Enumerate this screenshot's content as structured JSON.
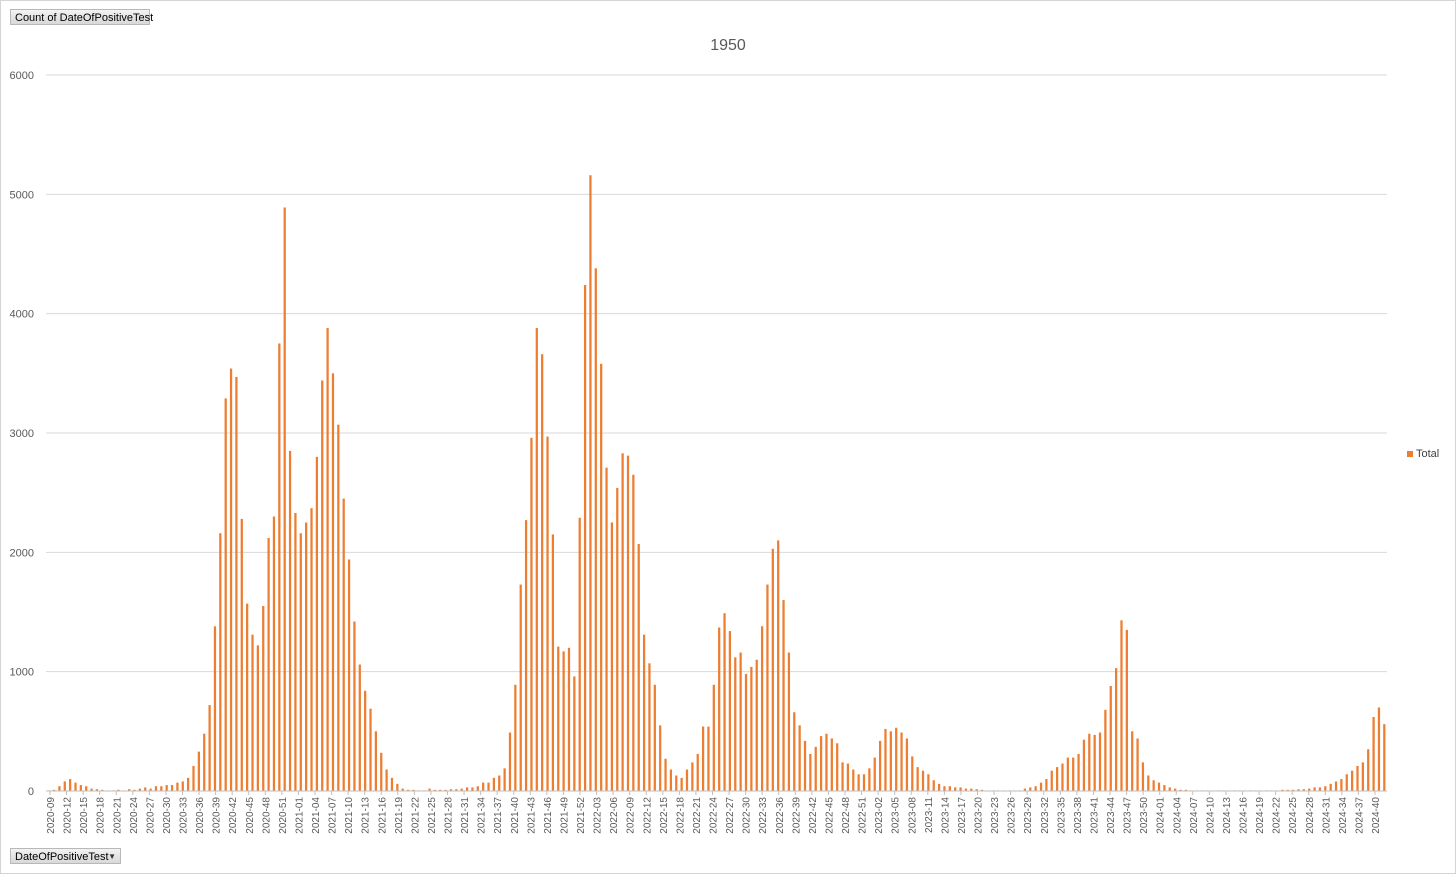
{
  "pivot": {
    "value_field": "Count of DateOfPositiveTest",
    "axis_field": "DateOfPositiveTest"
  },
  "colors": {
    "bar": "#ed7d31",
    "grid": "#d9d9d9",
    "axis_text": "#595959"
  },
  "chart_data": {
    "type": "bar",
    "title": "1950",
    "legend_position": "right",
    "grid": true,
    "ylim": [
      0,
      6000
    ],
    "yticks": [
      0,
      1000,
      2000,
      3000,
      4000,
      5000,
      6000
    ],
    "visible_tick_labels": [
      "2020-09",
      "2020-12",
      "2020-15",
      "2020-18",
      "2020-21",
      "2020-24",
      "2020-27",
      "2020-30",
      "2020-33",
      "2020-36",
      "2020-39",
      "2020-42",
      "2020-45",
      "2020-48",
      "2020-51",
      "2021-01",
      "2021-04",
      "2021-07",
      "2021-10",
      "2021-13",
      "2021-16",
      "2021-19",
      "2021-22",
      "2021-25",
      "2021-28",
      "2021-31",
      "2021-34",
      "2021-37",
      "2021-40",
      "2021-43",
      "2021-46",
      "2021-49",
      "2021-52",
      "2022-03",
      "2022-06",
      "2022-09",
      "2022-12",
      "2022-15",
      "2022-18",
      "2022-21",
      "2022-24",
      "2022-27",
      "2022-30",
      "2022-33",
      "2022-36",
      "2022-39",
      "2022-42",
      "2022-45",
      "2022-48",
      "2022-51",
      "2023-02",
      "2023-05",
      "2023-08",
      "2023-11",
      "2023-14",
      "2023-17",
      "2023-20",
      "2023-23",
      "2023-26",
      "2023-29",
      "2023-32",
      "2023-35",
      "2023-38",
      "2023-41",
      "2023-44",
      "2023-47",
      "2023-50",
      "2024-01",
      "2024-04",
      "2024-07",
      "2024-10",
      "2024-13",
      "2024-16",
      "2024-19",
      "2024-22",
      "2024-25",
      "2024-28",
      "2024-31",
      "2024-34",
      "2024-37",
      "2024-40"
    ],
    "series": [
      {
        "name": "Total",
        "values": [
          5,
          10,
          40,
          80,
          100,
          70,
          50,
          40,
          20,
          15,
          10,
          5,
          5,
          10,
          5,
          15,
          10,
          20,
          30,
          20,
          40,
          40,
          50,
          50,
          70,
          80,
          110,
          210,
          330,
          480,
          720,
          1380,
          2160,
          3290,
          3540,
          3470,
          2280,
          1570,
          1310,
          1220,
          1550,
          2120,
          2300,
          3750,
          4890,
          2850,
          2330,
          2160,
          2250,
          2370,
          2800,
          3440,
          3880,
          3500,
          3070,
          2450,
          1940,
          1420,
          1060,
          840,
          690,
          500,
          320,
          180,
          110,
          60,
          20,
          10,
          10,
          5,
          5,
          20,
          10,
          10,
          10,
          15,
          15,
          20,
          30,
          30,
          40,
          70,
          70,
          110,
          130,
          190,
          490,
          890,
          1730,
          2270,
          2960,
          3880,
          3660,
          2970,
          2150,
          1210,
          1170,
          1200,
          960,
          2290,
          4240,
          5160,
          4380,
          3580,
          2710,
          2250,
          2540,
          2830,
          2810,
          2650,
          2070,
          1310,
          1070,
          890,
          550,
          270,
          180,
          130,
          110,
          180,
          240,
          310,
          540,
          540,
          890,
          1370,
          1490,
          1340,
          1120,
          1160,
          980,
          1040,
          1100,
          1380,
          1730,
          2030,
          2100,
          1600,
          1160,
          660,
          550,
          420,
          310,
          370,
          460,
          480,
          440,
          400,
          240,
          230,
          180,
          140,
          140,
          190,
          280,
          420,
          520,
          500,
          530,
          490,
          440,
          290,
          200,
          170,
          140,
          90,
          60,
          40,
          40,
          30,
          30,
          20,
          20,
          15,
          10,
          5,
          5,
          5,
          5,
          5,
          5,
          5,
          20,
          30,
          40,
          70,
          100,
          170,
          200,
          230,
          280,
          280,
          310,
          430,
          480,
          470,
          490,
          680,
          880,
          1030,
          1430,
          1350,
          500,
          440,
          240,
          130,
          90,
          70,
          50,
          30,
          20,
          10,
          10,
          5,
          5,
          5,
          5,
          5,
          5,
          5,
          5,
          5,
          5,
          5,
          5,
          5,
          5,
          5,
          5,
          5,
          10,
          10,
          10,
          15,
          15,
          20,
          30,
          30,
          40,
          60,
          80,
          100,
          140,
          170,
          210,
          240,
          350,
          620,
          700,
          560
        ]
      }
    ]
  },
  "legend_label": "Total"
}
